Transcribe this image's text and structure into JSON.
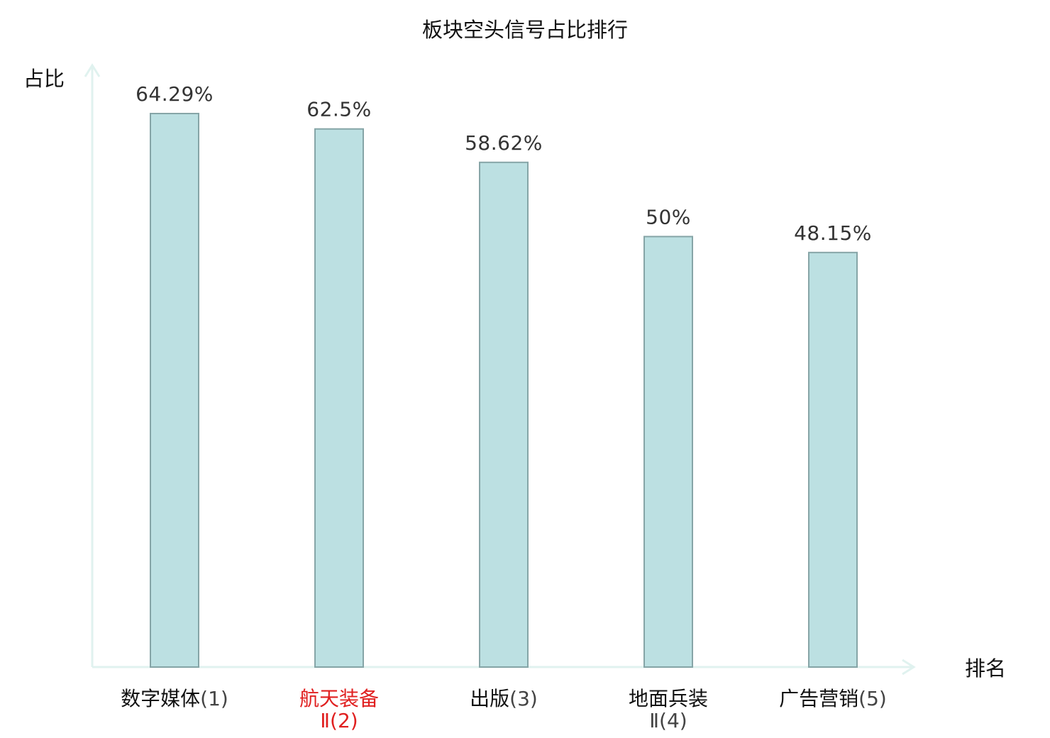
{
  "chart_data": {
    "type": "bar",
    "title": "板块空头信号占比排行",
    "ylabel": "占比",
    "xlabel": "排名",
    "categories": [
      {
        "line1": "数字媒体",
        "line1_suffix": "(1)",
        "line2": "",
        "highlight": false
      },
      {
        "line1": "航天装备",
        "line1_suffix": "",
        "line2": "Ⅱ(2)",
        "highlight": true
      },
      {
        "line1": "出版",
        "line1_suffix": "(3)",
        "line2": "",
        "highlight": false
      },
      {
        "line1": "地面兵装",
        "line1_suffix": "",
        "line2": "Ⅱ(4)",
        "highlight": false
      },
      {
        "line1": "广告营销",
        "line1_suffix": "(5)",
        "line2": "",
        "highlight": false
      }
    ],
    "values": [
      64.29,
      62.5,
      58.62,
      50,
      48.15
    ],
    "value_labels": [
      "64.29%",
      "62.5%",
      "58.62%",
      "50%",
      "48.15%"
    ],
    "ylim": [
      0,
      100
    ],
    "grid": false,
    "legend": "none",
    "colors": {
      "bar_fill": "#bce0e2",
      "bar_stroke": "#86a5a7",
      "axis": "#e0f2ef",
      "value_text": "#333333",
      "category_text": "#111111",
      "highlight_text": "#e02020",
      "suffix_text": "#444444"
    }
  }
}
